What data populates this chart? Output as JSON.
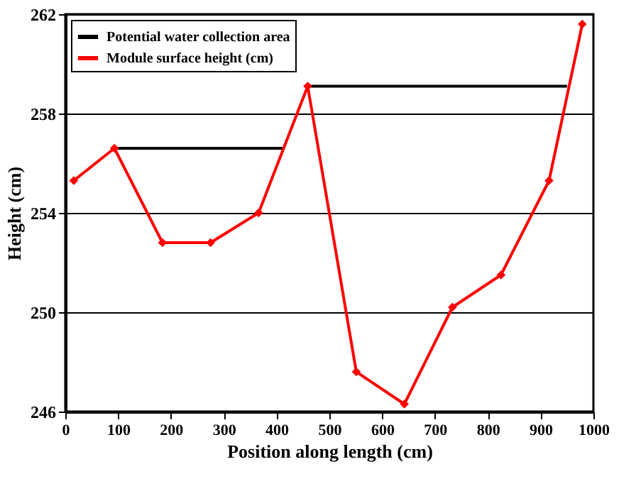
{
  "chart_data": {
    "type": "line",
    "xlabel": "Position along length (cm)",
    "ylabel": "Height (cm)",
    "xlim": [
      0,
      1000
    ],
    "xticks": [
      0,
      100,
      200,
      300,
      400,
      500,
      600,
      700,
      800,
      900,
      1000
    ],
    "ylim": [
      246,
      262
    ],
    "yticks": [
      246,
      250,
      254,
      258,
      262
    ],
    "grid": "y",
    "legend": "top left",
    "series": [
      {
        "name": "Potential water collection area",
        "color": "#000000",
        "marker": "none",
        "x": [
          93,
          411,
          435,
          459,
          950
        ],
        "values": [
          256.6,
          256.6,
          null,
          259.1,
          259.1
        ]
      },
      {
        "name": "Module surface height (cm)",
        "color": "#ff0000",
        "marker": "diamond",
        "x": [
          16,
          93,
          184,
          275,
          366,
          459,
          551,
          642,
          733,
          825,
          916,
          979
        ],
        "values": [
          255.3,
          256.6,
          252.8,
          252.8,
          254.0,
          259.1,
          247.6,
          246.3,
          250.2,
          251.5,
          255.3,
          261.6
        ]
      }
    ]
  }
}
